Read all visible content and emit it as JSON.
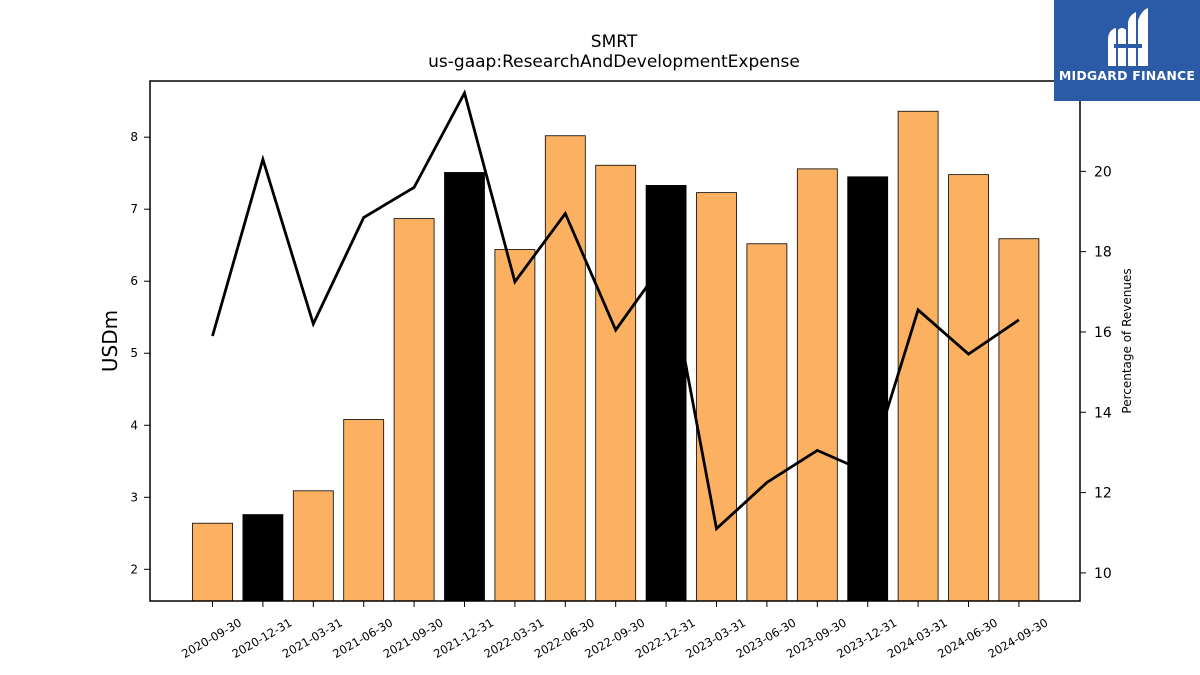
{
  "logo": {
    "text": "MIDGARD FINANCE",
    "background": "#2b5aa6",
    "icon": "midgard-logo-icon"
  },
  "chart_data": {
    "type": "bar",
    "title": "SMRT",
    "subtitle": "us-gaap:ResearchAndDevelopmentExpense",
    "ylabel": "USDm",
    "y2label": "Percentage of Revenues",
    "categories": [
      "2020-09-30",
      "2020-12-31",
      "2021-03-31",
      "2021-06-30",
      "2021-09-30",
      "2021-12-31",
      "2022-03-31",
      "2022-06-30",
      "2022-09-30",
      "2022-12-31",
      "2023-03-31",
      "2023-06-30",
      "2023-09-30",
      "2023-12-31",
      "2024-03-31",
      "2024-06-30",
      "2024-09-30"
    ],
    "series": [
      {
        "type": "bar",
        "values": [
          2.64,
          2.76,
          3.09,
          4.08,
          6.87,
          7.51,
          6.44,
          8.02,
          7.61,
          7.33,
          7.23,
          6.52,
          7.56,
          7.45,
          8.36,
          7.48,
          6.59
        ]
      },
      {
        "type": "line",
        "axis": "right",
        "values": [
          15.9,
          20.3,
          16.2,
          18.85,
          19.6,
          21.95,
          17.25,
          18.95,
          16.05,
          17.8,
          11.1,
          12.25,
          13.05,
          12.5,
          16.55,
          15.45,
          16.3
        ]
      }
    ],
    "ylim": [
      1.56,
      8.78
    ],
    "y2lim": [
      9.3,
      22.25
    ],
    "yticks": [
      2,
      3,
      4,
      5,
      6,
      7,
      8
    ],
    "y2ticks": [
      10,
      12,
      14,
      16,
      18,
      20
    ],
    "colors": {
      "bar": "#fbb161",
      "bar_highlight": "#000000",
      "line": "#000000"
    },
    "highlight_categories": [
      "2020-12-31",
      "2021-12-31",
      "2022-12-31",
      "2023-12-31"
    ],
    "grid": false,
    "legend": "none"
  }
}
